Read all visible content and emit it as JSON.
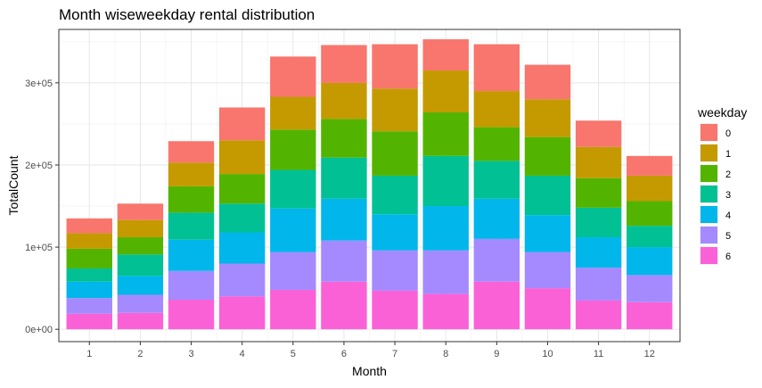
{
  "chart_data": {
    "type": "bar",
    "stacked": true,
    "title": "Month wiseweekday rental distribution",
    "xlabel": "Month",
    "ylabel": "TotalCount",
    "categories": [
      "1",
      "2",
      "3",
      "4",
      "5",
      "6",
      "7",
      "8",
      "9",
      "10",
      "11",
      "12"
    ],
    "ylim": [
      -15000,
      365000
    ],
    "yticks": [
      0,
      100000,
      200000,
      300000
    ],
    "ytick_labels": [
      "0e+00",
      "1e+05",
      "2e+05",
      "3e+05"
    ],
    "grid": true,
    "legend_title": "weekday",
    "legend_position": "right",
    "series": [
      {
        "name": "6",
        "color": "#FB61D7",
        "values": [
          19000,
          20000,
          36000,
          40000,
          48000,
          58000,
          47000,
          43000,
          58000,
          50000,
          35000,
          33000
        ]
      },
      {
        "name": "5",
        "color": "#A58AFF",
        "values": [
          19000,
          22000,
          35000,
          40000,
          46000,
          50000,
          49000,
          53000,
          52000,
          44000,
          40000,
          33000
        ]
      },
      {
        "name": "4",
        "color": "#00B6EB",
        "values": [
          20000,
          23000,
          38000,
          38000,
          53000,
          51000,
          44000,
          54000,
          49000,
          45000,
          37000,
          34000
        ]
      },
      {
        "name": "3",
        "color": "#00C094",
        "values": [
          16000,
          26000,
          33000,
          35000,
          47000,
          50000,
          47000,
          61000,
          46000,
          48000,
          36000,
          26000
        ]
      },
      {
        "name": "2",
        "color": "#53B400",
        "values": [
          24000,
          21000,
          32000,
          36000,
          49000,
          47000,
          54000,
          53000,
          41000,
          47000,
          36000,
          30000
        ]
      },
      {
        "name": "1",
        "color": "#C49A00",
        "values": [
          19000,
          21000,
          29000,
          41000,
          40000,
          44000,
          52000,
          51000,
          44000,
          46000,
          38000,
          31000
        ]
      },
      {
        "name": "0",
        "color": "#F8766D",
        "values": [
          18000,
          20000,
          26000,
          40000,
          49000,
          46000,
          54000,
          38000,
          57000,
          42000,
          32000,
          24000
        ]
      }
    ],
    "legend_order": [
      "0",
      "1",
      "2",
      "3",
      "4",
      "5",
      "6"
    ]
  }
}
